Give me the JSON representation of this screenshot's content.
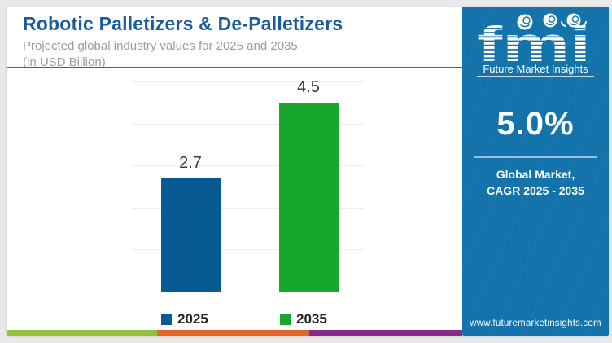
{
  "header": {
    "title": "Robotic Palletizers & De-Palletizers",
    "subtitle_line1": "Projected global industry values for 2025 and 2035",
    "subtitle_line2": "(in USD Billion)"
  },
  "chart_data": {
    "type": "bar",
    "title": "Robotic Palletizers & De-Palletizers",
    "subtitle": "Projected global industry values for 2025 and 2035 (in USD Billion)",
    "categories": [
      "2025",
      "2035"
    ],
    "values": [
      2.7,
      4.5
    ],
    "value_labels": [
      "2.7",
      "4.5"
    ],
    "colors": [
      "#085a92",
      "#17a72e"
    ],
    "unit": "USD Billion",
    "ylim": [
      0,
      5
    ],
    "grid": true,
    "legend_position": "bottom"
  },
  "legend": {
    "items": [
      {
        "label": "2025",
        "color": "#085a92"
      },
      {
        "label": "2035",
        "color": "#17a72e"
      }
    ]
  },
  "panel": {
    "background": "#1373aa",
    "logo_text": "fmi",
    "logo_caption": "Future Market Insights",
    "cagr_value": "5.0%",
    "cagr_caption_line1": "Global Market,",
    "cagr_caption_line2": "CAGR 2025 - 2035",
    "website": "www.futuremarketinsights.com"
  },
  "footer_stripe": {
    "colors": [
      "#93c13c",
      "#e2662a",
      "#852d88"
    ]
  }
}
